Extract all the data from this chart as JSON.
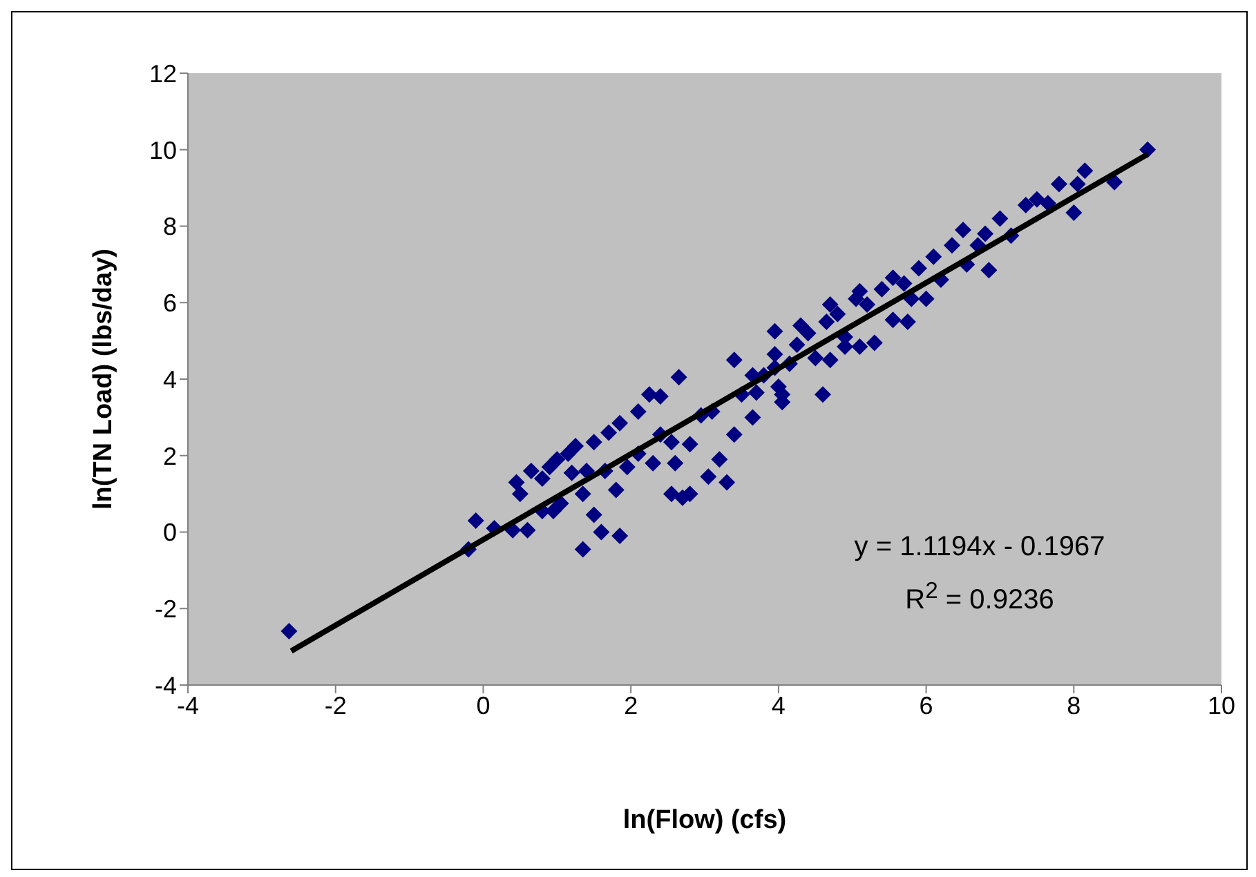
{
  "chart_data": {
    "type": "scatter",
    "xlabel": "ln(Flow) (cfs)",
    "ylabel": "ln(TN Load) (lbs/day)",
    "xlim": [
      -4,
      10
    ],
    "xticks": [
      -4,
      -2,
      0,
      2,
      4,
      6,
      8,
      10
    ],
    "ylim": [
      -4,
      12
    ],
    "yticks": [
      -4,
      -2,
      0,
      2,
      4,
      6,
      8,
      10,
      12
    ],
    "grid": false,
    "legend": false,
    "annotations": [
      "y = 1.1194x - 0.1967",
      "R$^{2}$ = 0.9236"
    ],
    "series": [
      {
        "marker": "diamond",
        "color": "#000080",
        "x": [
          -2.63,
          -0.2,
          -0.1,
          0.15,
          0.4,
          0.5,
          0.45,
          0.65,
          0.8,
          0.6,
          0.8,
          0.9,
          1.0,
          1.15,
          1.25,
          0.95,
          1.05,
          1.35,
          1.2,
          1.4,
          1.35,
          1.6,
          1.5,
          1.5,
          1.7,
          1.85,
          1.65,
          1.85,
          1.8,
          1.95,
          2.1,
          2.25,
          2.4,
          2.65,
          2.1,
          2.3,
          2.4,
          2.55,
          2.55,
          2.7,
          2.8,
          2.6,
          2.8,
          2.95,
          3.1,
          3.05,
          3.2,
          3.3,
          3.4,
          3.5,
          3.4,
          3.65,
          3.7,
          3.8,
          3.95,
          4.0,
          4.15,
          4.05,
          4.05,
          3.95,
          4.25,
          4.4,
          4.5,
          4.6,
          4.65,
          4.8,
          4.9,
          5.05,
          5.1,
          5.3,
          5.2,
          5.4,
          5.55,
          5.7,
          5.75,
          5.8,
          5.9,
          6.1,
          6.2,
          6.35,
          6.5,
          6.7,
          6.85,
          6.8,
          7.0,
          7.15,
          7.35,
          7.5,
          7.65,
          7.8,
          8.15,
          8.05,
          8.0,
          8.55,
          9.0,
          4.3,
          4.7,
          5.1,
          5.55,
          6.0,
          6.55,
          3.95,
          3.65,
          4.7,
          4.9
        ],
        "values": [
          -2.59,
          -0.45,
          0.3,
          0.1,
          0.05,
          1.0,
          1.3,
          1.6,
          1.4,
          0.05,
          0.55,
          1.7,
          1.9,
          2.05,
          2.25,
          0.55,
          0.75,
          1.0,
          1.55,
          1.6,
          -0.45,
          0.0,
          0.45,
          2.35,
          2.6,
          2.85,
          1.6,
          -0.1,
          1.1,
          1.7,
          3.15,
          3.6,
          3.55,
          4.05,
          2.05,
          1.8,
          2.55,
          2.35,
          1.0,
          0.9,
          1.0,
          1.8,
          2.3,
          3.05,
          3.15,
          1.45,
          1.9,
          1.3,
          2.55,
          3.6,
          4.5,
          3.0,
          3.65,
          4.1,
          4.3,
          3.8,
          4.4,
          3.4,
          3.6,
          5.25,
          4.9,
          5.2,
          4.55,
          3.6,
          5.5,
          5.7,
          5.1,
          6.1,
          4.85,
          4.95,
          5.95,
          6.35,
          6.65,
          6.5,
          5.5,
          6.1,
          6.9,
          7.2,
          6.6,
          7.5,
          7.9,
          7.5,
          6.85,
          7.8,
          8.2,
          7.75,
          8.55,
          8.7,
          8.6,
          9.1,
          9.45,
          9.1,
          8.35,
          9.15,
          10.0,
          5.4,
          5.95,
          6.3,
          5.55,
          6.1,
          7.0,
          4.65,
          4.1,
          4.5,
          4.85
        ]
      },
      {
        "type": "line",
        "marker": "none",
        "line_style": "solid",
        "color": "#000000",
        "x": [
          -2.6,
          9.0
        ],
        "values": [
          -3.11,
          9.88
        ]
      }
    ]
  }
}
